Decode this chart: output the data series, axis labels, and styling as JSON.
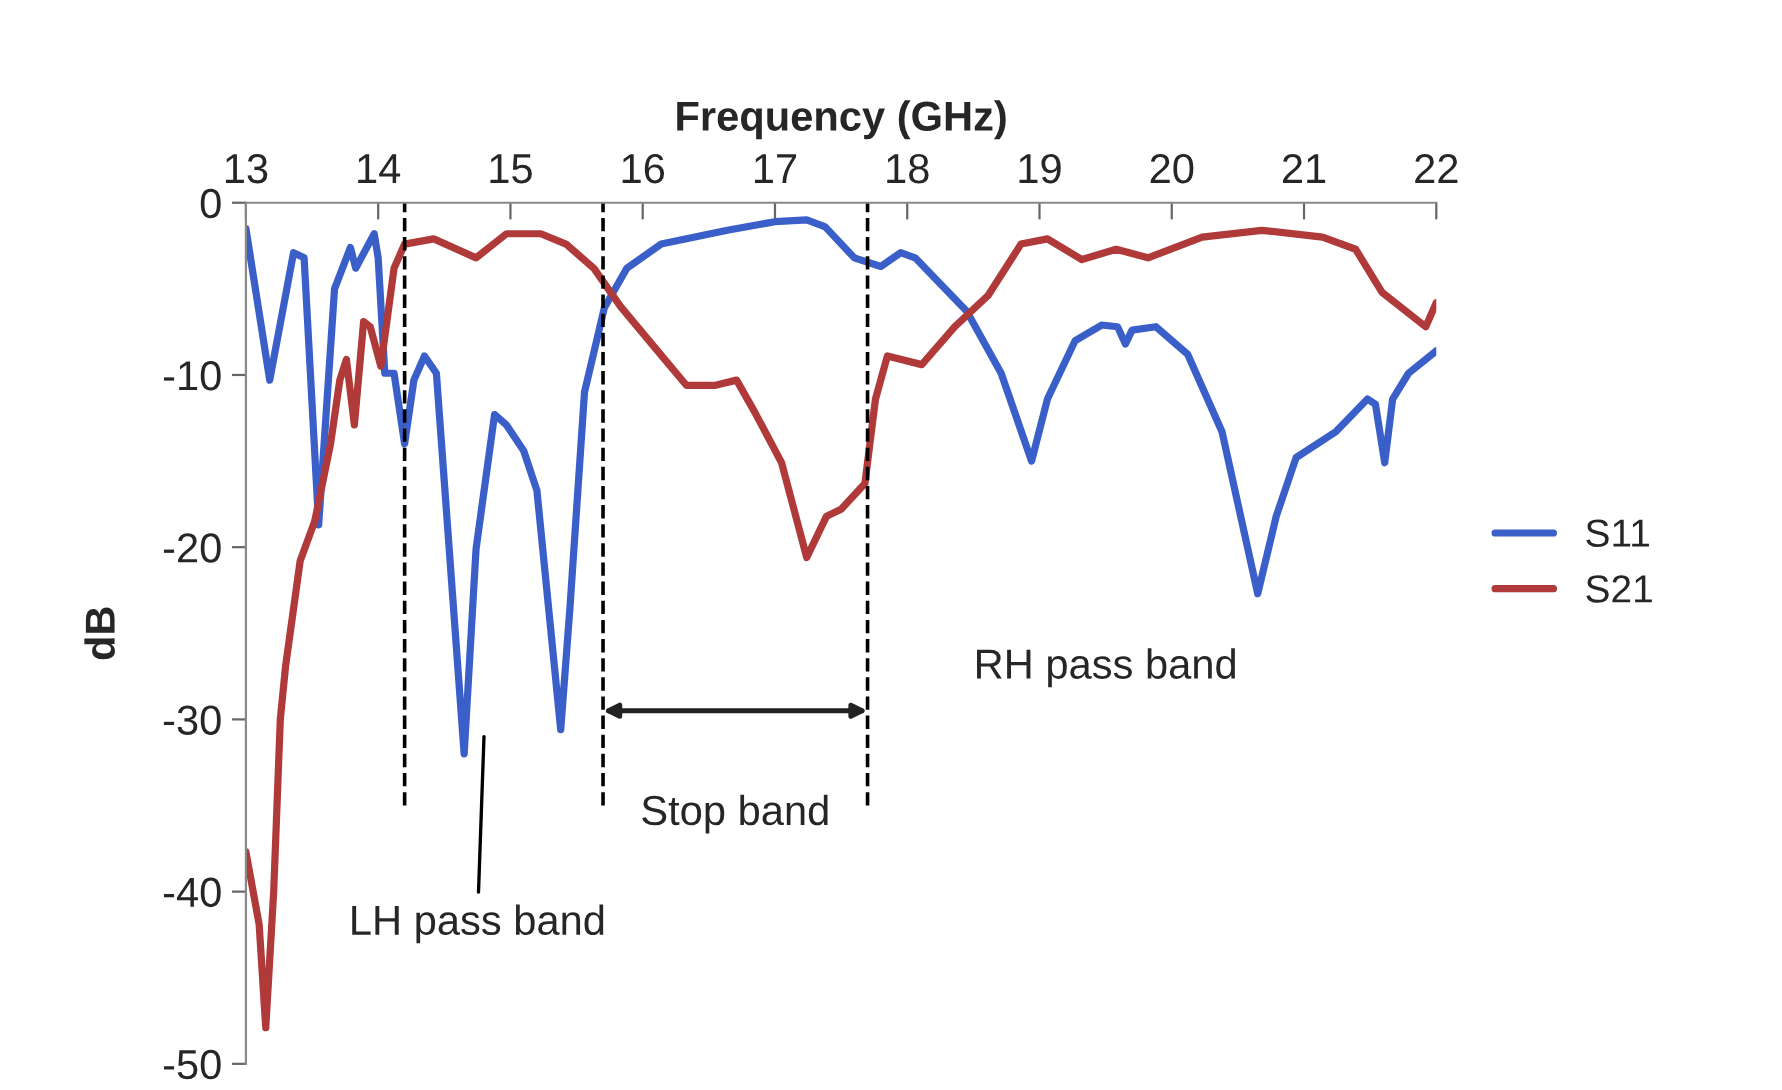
{
  "chart_data": {
    "type": "line",
    "xlabel": "Frequency (GHz)",
    "ylabel": "dB",
    "xlim": [
      13,
      22
    ],
    "xticks": [
      13,
      14,
      15,
      16,
      17,
      18,
      19,
      20,
      21,
      22
    ],
    "ylim": [
      -50,
      0
    ],
    "yticks": [
      -50,
      -40,
      -30,
      -20,
      -10,
      0
    ],
    "grid": false,
    "legend": "right",
    "line_style": "solid",
    "marker": "none",
    "series": [
      {
        "name": "S11",
        "color": "#3a5fc8",
        "x": [
          13,
          13.18,
          13.36,
          13.44,
          13.55,
          13.67,
          13.79,
          13.83,
          13.97,
          14.0,
          14.05,
          14.12,
          14.2,
          14.27,
          14.35,
          14.44,
          14.65,
          14.74,
          14.88,
          14.97,
          15.1,
          15.2,
          15.38,
          15.45,
          15.56,
          15.71,
          15.88,
          16.14,
          16.64,
          17.0,
          17.24,
          17.38,
          17.6,
          17.8,
          17.95,
          18.06,
          18.45,
          18.71,
          18.94,
          19.06,
          19.27,
          19.47,
          19.59,
          19.65,
          19.7,
          19.88,
          20.12,
          20.38,
          20.65,
          20.79,
          20.94,
          21.24,
          21.48,
          21.54,
          21.61,
          21.67,
          21.79,
          22
        ],
        "values": [
          -1.5,
          -10.3,
          -2.9,
          -3.2,
          -18.7,
          -5,
          -2.6,
          -3.8,
          -1.8,
          -3.2,
          -9.9,
          -9.9,
          -14,
          -10.3,
          -8.9,
          -9.9,
          -32,
          -20.1,
          -12.3,
          -12.9,
          -14.4,
          -16.7,
          -30.6,
          -23.5,
          -11,
          -6.1,
          -3.8,
          -2.4,
          -1.6,
          -1.1,
          -1.0,
          -1.4,
          -3.2,
          -3.7,
          -2.9,
          -3.2,
          -6.3,
          -9.9,
          -15,
          -11.4,
          -8,
          -7.1,
          -7.2,
          -8.2,
          -7.4,
          -7.2,
          -8.8,
          -13.3,
          -22.7,
          -18.2,
          -14.8,
          -13.3,
          -11.4,
          -11.7,
          -15.1,
          -11.4,
          -9.9,
          -8.6
        ]
      },
      {
        "name": "S21",
        "color": "#b03a3a",
        "x": [
          13,
          13.1,
          13.15,
          13.21,
          13.26,
          13.3,
          13.41,
          13.52,
          13.64,
          13.71,
          13.76,
          13.82,
          13.89,
          13.94,
          14.02,
          14.12,
          14.2,
          14.42,
          14.74,
          14.97,
          15.23,
          15.42,
          15.63,
          15.83,
          16.09,
          16.33,
          16.55,
          16.71,
          16.85,
          17.05,
          17.24,
          17.39,
          17.5,
          17.68,
          17.76,
          17.85,
          18.11,
          18.36,
          18.61,
          18.86,
          19.06,
          19.32,
          19.58,
          19.82,
          20.23,
          20.68,
          21.14,
          21.39,
          21.59,
          21.92,
          22
        ],
        "values": [
          -37.7,
          -41.9,
          -47.9,
          -40,
          -30,
          -26.9,
          -20.8,
          -18.5,
          -14,
          -10.3,
          -9.1,
          -12.9,
          -6.9,
          -7.2,
          -9.5,
          -3.8,
          -2.4,
          -2.1,
          -3.2,
          -1.8,
          -1.8,
          -2.4,
          -3.8,
          -6,
          -8.4,
          -10.6,
          -10.6,
          -10.3,
          -12.2,
          -15.1,
          -20.6,
          -18.2,
          -17.8,
          -16.3,
          -11.4,
          -8.9,
          -9.4,
          -7.2,
          -5.4,
          -2.4,
          -2.1,
          -3.3,
          -2.7,
          -3.2,
          -2.0,
          -1.6,
          -2.0,
          -2.7,
          -5.2,
          -7.2,
          -5.8
        ]
      }
    ],
    "ref_lines": [
      {
        "axis": "x",
        "value": 14.2,
        "color": "#000000",
        "line_style": "dashed"
      },
      {
        "axis": "x",
        "value": 15.7,
        "color": "#000000",
        "line_style": "dashed"
      },
      {
        "axis": "x",
        "value": 17.7,
        "color": "#000000",
        "line_style": "dashed"
      }
    ],
    "annotations": [
      "LH pass band",
      "Stop band",
      "RH pass band"
    ]
  }
}
